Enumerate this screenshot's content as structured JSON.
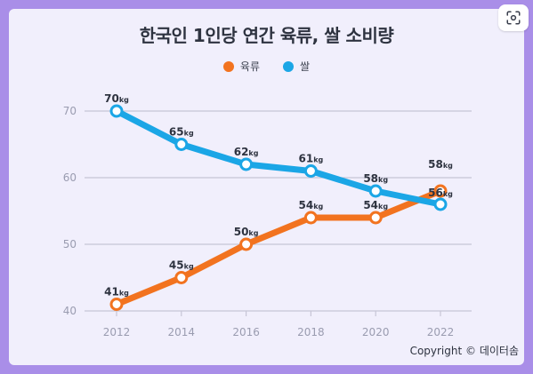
{
  "title": "한국인 1인당 연간 육류, 쌀 소비량",
  "copyright": "Copyright © 데이터솜",
  "colors": {
    "background": "#a98ee8",
    "card": "#f1effc",
    "grid": "#c7c5d6",
    "meat": "#f2731f",
    "rice": "#1ba6e6"
  },
  "icons": {
    "lens": "google-lens-icon"
  },
  "chart_data": {
    "type": "line",
    "title": "한국인 1인당 연간 육류, 쌀 소비량",
    "x": [
      "2012",
      "2014",
      "2016",
      "2018",
      "2020",
      "2022"
    ],
    "ylim": [
      40,
      70
    ],
    "yticks": [
      40,
      50,
      60,
      70
    ],
    "grid": true,
    "legend": "top-center",
    "unit": "kg",
    "series": [
      {
        "name": "육류",
        "color": "#f2731f",
        "values": [
          41,
          45,
          50,
          54,
          54,
          58
        ]
      },
      {
        "name": "쌀",
        "color": "#1ba6e6",
        "values": [
          70,
          65,
          62,
          61,
          58,
          56
        ]
      }
    ]
  }
}
